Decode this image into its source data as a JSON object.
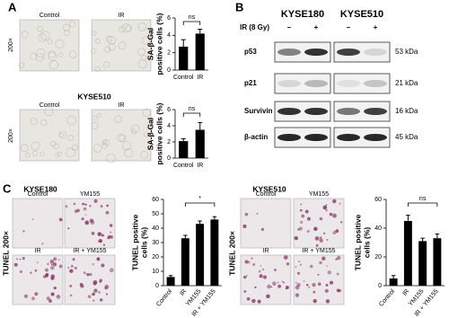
{
  "panel_labels": [
    "A",
    "B",
    "C"
  ],
  "micrographs": [
    {
      "title": null,
      "labels": [
        "Control",
        "IR"
      ],
      "side": "200×"
    },
    {
      "title": "KYSE510",
      "labels": [
        "Control",
        "IR"
      ],
      "side": "200×"
    },
    {
      "title": "KYSE180",
      "labels": [
        "Control",
        "YM155",
        "IR",
        "IR + YM155"
      ],
      "side": "TUNEL 200×"
    },
    {
      "title": "KYSE510",
      "labels": [
        "Control",
        "YM155",
        "IR",
        "IR + YM155"
      ],
      "side": "TUNEL 200×"
    }
  ],
  "western_blot": {
    "cell_lines": [
      "KYSE180",
      "KYSE510"
    ],
    "treatment_label": "IR (8 Gy)",
    "treatment_signs": [
      "–",
      "+",
      "–",
      "+"
    ],
    "rows": [
      {
        "protein": "p53",
        "size": "53 kDa"
      },
      {
        "protein": "p21",
        "size": "21 kDa"
      },
      {
        "protein": "Survivin",
        "size": "16 kDa"
      },
      {
        "protein": "β-actin",
        "size": "45 kDa"
      }
    ]
  },
  "chart_data": [
    {
      "type": "bar",
      "ylabel": [
        "SA-β-Gal",
        "positive cells (%)"
      ],
      "categories": [
        "Control",
        "IR"
      ],
      "values": [
        2.7,
        4.2
      ],
      "errors": [
        0.8,
        0.5
      ],
      "ylim": [
        0,
        6
      ],
      "yticks": [
        0,
        2,
        4,
        6
      ],
      "color": "#000000",
      "annotation": "ns"
    },
    {
      "type": "bar",
      "ylabel": [
        "SA-β-Gal",
        "positive cells (%)"
      ],
      "categories": [
        "Control",
        "IR"
      ],
      "values": [
        2.1,
        3.5
      ],
      "errors": [
        0.3,
        0.9
      ],
      "ylim": [
        0,
        6
      ],
      "yticks": [
        0,
        2,
        4,
        6
      ],
      "color": "#000000",
      "annotation": "ns"
    },
    {
      "type": "bar",
      "ylabel": [
        "TUNEL positive",
        "cells (%)"
      ],
      "categories": [
        "Control",
        "IR",
        "YM155",
        "IR + YM155"
      ],
      "values": [
        6,
        33,
        43,
        46
      ],
      "errors": [
        1,
        2,
        2,
        2
      ],
      "ylim": [
        0,
        60
      ],
      "yticks": [
        0,
        10,
        20,
        30,
        40,
        50,
        60
      ],
      "color": "#000000",
      "annotation": "*"
    },
    {
      "type": "bar",
      "ylabel": [
        "TUNEL positive",
        "cells (%)"
      ],
      "categories": [
        "Control",
        "IR",
        "YM155",
        "IR + YM155"
      ],
      "values": [
        5,
        45,
        31,
        33
      ],
      "errors": [
        2,
        4,
        2,
        3
      ],
      "ylim": [
        0,
        60
      ],
      "yticks": [
        0,
        20,
        40,
        60
      ],
      "color": "#000000",
      "annotation": "ns"
    }
  ]
}
